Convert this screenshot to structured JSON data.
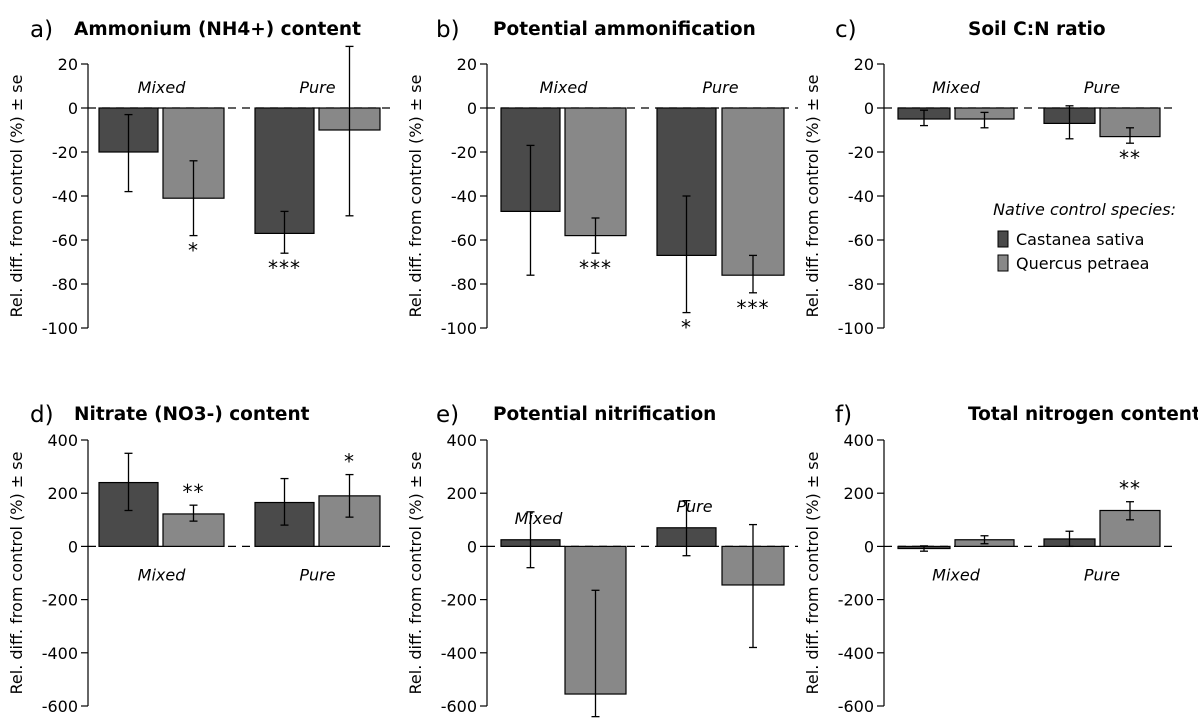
{
  "colors": {
    "castanea": "#4a4a4a",
    "quercus": "#888888",
    "stroke": "#000000"
  },
  "legend": {
    "title": "Native control species:",
    "items": [
      "Castanea sativa",
      "Quercus petraea"
    ]
  },
  "chart_data": [
    {
      "type": "bar",
      "letter": "a)",
      "title": "Ammonium (NH4+) content",
      "ylabel": "Rel. diff. from control (%) ± se",
      "ylim": [
        -100,
        20
      ],
      "yticks": [
        20,
        0,
        -20,
        -40,
        -60,
        -80,
        -100
      ],
      "groups": [
        {
          "label": "Mixed",
          "label_pos": "top"
        },
        {
          "label": "Pure",
          "label_pos": "top"
        }
      ],
      "series": [
        {
          "name": "Castanea sativa",
          "values": [
            -20,
            -57
          ],
          "se_low": [
            -38,
            -66
          ],
          "se_high": [
            -3,
            -47
          ],
          "sig": [
            "",
            "***"
          ]
        },
        {
          "name": "Quercus petraea",
          "values": [
            -41,
            -10
          ],
          "se_low": [
            -58,
            -49
          ],
          "se_high": [
            -24,
            28
          ],
          "sig": [
            "*",
            ""
          ]
        }
      ]
    },
    {
      "type": "bar",
      "letter": "b)",
      "title": "Potential ammonification",
      "ylabel": "Rel. diff. from control (%) ± se",
      "ylim": [
        -100,
        20
      ],
      "yticks": [
        20,
        0,
        -20,
        -40,
        -60,
        -80,
        -100
      ],
      "groups": [
        {
          "label": "Mixed",
          "label_pos": "top"
        },
        {
          "label": "Pure",
          "label_pos": "top"
        }
      ],
      "series": [
        {
          "name": "Castanea sativa",
          "values": [
            -47,
            -67
          ],
          "se_low": [
            -76,
            -93
          ],
          "se_high": [
            -17,
            -40
          ],
          "sig": [
            "",
            "*"
          ]
        },
        {
          "name": "Quercus petraea",
          "values": [
            -58,
            -76
          ],
          "se_low": [
            -66,
            -84
          ],
          "se_high": [
            -50,
            -67
          ],
          "sig": [
            "***",
            "***"
          ]
        }
      ]
    },
    {
      "type": "bar",
      "letter": "c)",
      "title": "Soil C:N ratio",
      "ylabel": "Rel. diff. from control (%) ± se",
      "ylim": [
        -100,
        20
      ],
      "yticks": [
        20,
        0,
        -20,
        -40,
        -60,
        -80,
        -100
      ],
      "groups": [
        {
          "label": "Mixed",
          "label_pos": "top"
        },
        {
          "label": "Pure",
          "label_pos": "top"
        }
      ],
      "series": [
        {
          "name": "Castanea sativa",
          "values": [
            -5,
            -7
          ],
          "se_low": [
            -8,
            -14
          ],
          "se_high": [
            -1,
            1
          ],
          "sig": [
            "",
            ""
          ]
        },
        {
          "name": "Quercus petraea",
          "values": [
            -5,
            -13
          ],
          "se_low": [
            -9,
            -16
          ],
          "se_high": [
            -2,
            -9
          ],
          "sig": [
            "",
            "**"
          ]
        }
      ]
    },
    {
      "type": "bar",
      "letter": "d)",
      "title": "Nitrate (NO3-) content",
      "ylabel": "Rel. diff. from control (%) ± se",
      "ylim": [
        -600,
        400
      ],
      "yticks": [
        400,
        200,
        0,
        -200,
        -400,
        -600
      ],
      "groups": [
        {
          "label": "Mixed",
          "label_pos": "below"
        },
        {
          "label": "Pure",
          "label_pos": "below"
        }
      ],
      "series": [
        {
          "name": "Castanea sativa",
          "values": [
            240,
            165
          ],
          "se_low": [
            135,
            80
          ],
          "se_high": [
            350,
            255
          ],
          "sig": [
            "",
            ""
          ]
        },
        {
          "name": "Quercus petraea",
          "values": [
            122,
            190
          ],
          "se_low": [
            95,
            110
          ],
          "se_high": [
            155,
            270
          ],
          "sig": [
            "**",
            "*"
          ]
        }
      ]
    },
    {
      "type": "bar",
      "letter": "e)",
      "title": "Potential nitrification",
      "ylabel": "Rel. diff. from control (%) ± se",
      "ylim": [
        -600,
        400
      ],
      "yticks": [
        400,
        200,
        0,
        -200,
        -400,
        -600
      ],
      "groups": [
        {
          "label": "Mixed",
          "label_pos": "above-bar"
        },
        {
          "label": "Pure",
          "label_pos": "above-bar"
        }
      ],
      "series": [
        {
          "name": "Castanea sativa",
          "values": [
            25,
            70
          ],
          "se_low": [
            -80,
            -35
          ],
          "se_high": [
            130,
            172
          ],
          "sig": [
            "",
            ""
          ]
        },
        {
          "name": "Quercus petraea",
          "values": [
            -555,
            -145
          ],
          "se_low": [
            -640,
            -380
          ],
          "se_high": [
            -165,
            82
          ],
          "sig": [
            "",
            ""
          ]
        }
      ]
    },
    {
      "type": "bar",
      "letter": "f)",
      "title": "Total nitrogen content",
      "ylabel": "Rel. diff. from control (%) ± se",
      "ylim": [
        -600,
        400
      ],
      "yticks": [
        400,
        200,
        0,
        -200,
        -400,
        -600
      ],
      "groups": [
        {
          "label": "Mixed",
          "label_pos": "below"
        },
        {
          "label": "Pure",
          "label_pos": "below"
        }
      ],
      "series": [
        {
          "name": "Castanea sativa",
          "values": [
            -8,
            28
          ],
          "se_low": [
            -18,
            0
          ],
          "se_high": [
            2,
            57
          ],
          "sig": [
            "",
            ""
          ]
        },
        {
          "name": "Quercus petraea",
          "values": [
            25,
            135
          ],
          "se_low": [
            10,
            100
          ],
          "se_high": [
            40,
            168
          ],
          "sig": [
            "",
            "**"
          ]
        }
      ]
    }
  ]
}
